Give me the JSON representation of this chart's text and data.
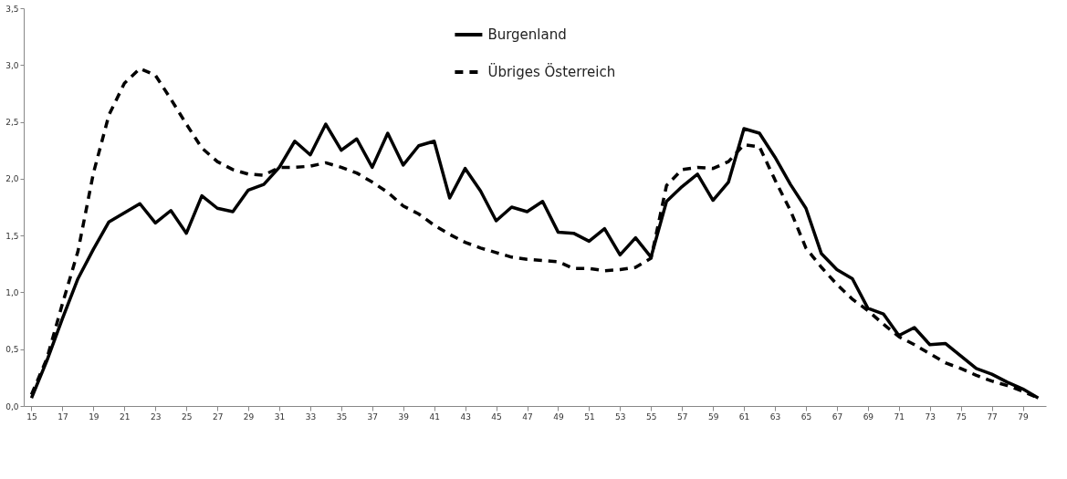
{
  "chart_data": {
    "type": "line",
    "categories": [
      "15",
      null,
      "17",
      null,
      "19",
      null,
      "21",
      null,
      "23",
      null,
      "25",
      null,
      "27",
      null,
      "29",
      null,
      "31",
      null,
      "33",
      null,
      "35",
      null,
      "37",
      null,
      "39",
      null,
      "41",
      null,
      "43",
      null,
      "45",
      null,
      "47",
      null,
      "49",
      null,
      "51",
      null,
      "53",
      null,
      "55",
      null,
      "57",
      null,
      "59",
      null,
      "61",
      null,
      "63",
      null,
      "65",
      null,
      "67",
      null,
      "69",
      null,
      "71",
      null,
      "73",
      null,
      "75",
      null,
      "77",
      null,
      "79",
      null
    ],
    "series": [
      {
        "name": "Burgenland",
        "color": "#000000",
        "line_style": "solid",
        "values": [
          0.07,
          0.4,
          0.77,
          1.12,
          1.38,
          1.62,
          1.7,
          1.78,
          1.61,
          1.72,
          1.52,
          1.85,
          1.74,
          1.71,
          1.9,
          1.95,
          2.1,
          2.33,
          2.21,
          2.48,
          2.25,
          2.35,
          2.1,
          2.4,
          2.12,
          2.29,
          2.33,
          1.83,
          2.09,
          1.89,
          1.63,
          1.75,
          1.71,
          1.8,
          1.53,
          1.52,
          1.45,
          1.56,
          1.33,
          1.48,
          1.31,
          1.8,
          1.93,
          2.04,
          1.81,
          1.97,
          2.44,
          2.4,
          2.19,
          1.95,
          1.74,
          1.34,
          1.2,
          1.12,
          0.86,
          0.81,
          0.62,
          0.69,
          0.54,
          0.55,
          0.44,
          0.33,
          0.28,
          0.21,
          0.15,
          0.07
        ]
      },
      {
        "name": "Übriges Österreich",
        "color": "#000000",
        "line_style": "dashed",
        "values": [
          0.1,
          0.42,
          0.9,
          1.36,
          2.05,
          2.56,
          2.84,
          2.97,
          2.91,
          2.7,
          2.48,
          2.27,
          2.15,
          2.08,
          2.04,
          2.03,
          2.1,
          2.1,
          2.11,
          2.14,
          2.1,
          2.05,
          1.97,
          1.88,
          1.76,
          1.69,
          1.59,
          1.51,
          1.44,
          1.39,
          1.35,
          1.31,
          1.29,
          1.28,
          1.27,
          1.21,
          1.21,
          1.19,
          1.2,
          1.22,
          1.3,
          1.94,
          2.08,
          2.1,
          2.09,
          2.15,
          2.3,
          2.28,
          1.99,
          1.72,
          1.39,
          1.22,
          1.07,
          0.94,
          0.84,
          0.72,
          0.61,
          0.54,
          0.46,
          0.38,
          0.33,
          0.27,
          0.22,
          0.18,
          0.13,
          0.07
        ]
      }
    ],
    "ylim": [
      0,
      3.5
    ],
    "yticks": [
      {
        "value": 0,
        "label": "0,0"
      },
      {
        "value": 0.5,
        "label": "0,5"
      },
      {
        "value": 1,
        "label": "1,0"
      },
      {
        "value": 1.5,
        "label": "1,5"
      },
      {
        "value": 2,
        "label": "2,0"
      },
      {
        "value": 2.5,
        "label": "2,5"
      },
      {
        "value": 3,
        "label": "3,0"
      },
      {
        "value": 3.5,
        "label": "3,5"
      }
    ],
    "grid": false,
    "legend": "top",
    "marker": "none"
  }
}
